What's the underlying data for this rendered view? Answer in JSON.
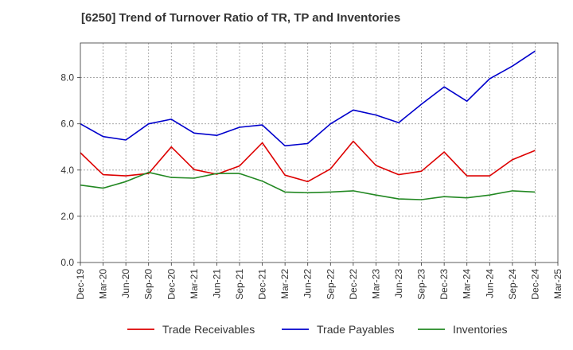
{
  "chart_data": {
    "type": "line",
    "title": "[6250]  Trend of Turnover Ratio of TR, TP and Inventories",
    "xlabel": "",
    "ylabel": "",
    "ylim": [
      0,
      9.5
    ],
    "yticks": [
      "0.0",
      "2.0",
      "4.0",
      "6.0",
      "8.0"
    ],
    "ytick_values": [
      0,
      2,
      4,
      6,
      8
    ],
    "categories": [
      "Dec-19",
      "Mar-20",
      "Jun-20",
      "Sep-20",
      "Dec-20",
      "Mar-21",
      "Jun-21",
      "Sep-21",
      "Dec-21",
      "Mar-22",
      "Jun-22",
      "Sep-22",
      "Dec-22",
      "Mar-23",
      "Jun-23",
      "Sep-23",
      "Dec-23",
      "Mar-24",
      "Jun-24",
      "Sep-24",
      "Dec-24",
      "Mar-25"
    ],
    "grid": true,
    "legend_position": "bottom",
    "series": [
      {
        "name": "Trade Receivables",
        "color": "#dd0000",
        "values": [
          4.75,
          3.8,
          3.75,
          3.85,
          5.0,
          4.02,
          3.82,
          4.18,
          5.18,
          3.78,
          3.5,
          4.05,
          5.25,
          4.2,
          3.8,
          3.95,
          4.78,
          3.75,
          3.75,
          4.45,
          4.85,
          null
        ]
      },
      {
        "name": "Trade Payables",
        "color": "#0000cc",
        "values": [
          6.0,
          5.45,
          5.3,
          6.0,
          6.2,
          5.6,
          5.5,
          5.85,
          5.95,
          5.05,
          5.15,
          6.0,
          6.6,
          6.38,
          6.05,
          6.85,
          7.6,
          6.98,
          7.95,
          8.5,
          9.15,
          null
        ]
      },
      {
        "name": "Inventories",
        "color": "#228822",
        "values": [
          3.35,
          3.22,
          3.5,
          3.9,
          3.68,
          3.65,
          3.85,
          3.85,
          3.52,
          3.05,
          3.02,
          3.05,
          3.1,
          2.92,
          2.75,
          2.72,
          2.85,
          2.8,
          2.92,
          3.1,
          3.05,
          null
        ]
      }
    ]
  }
}
